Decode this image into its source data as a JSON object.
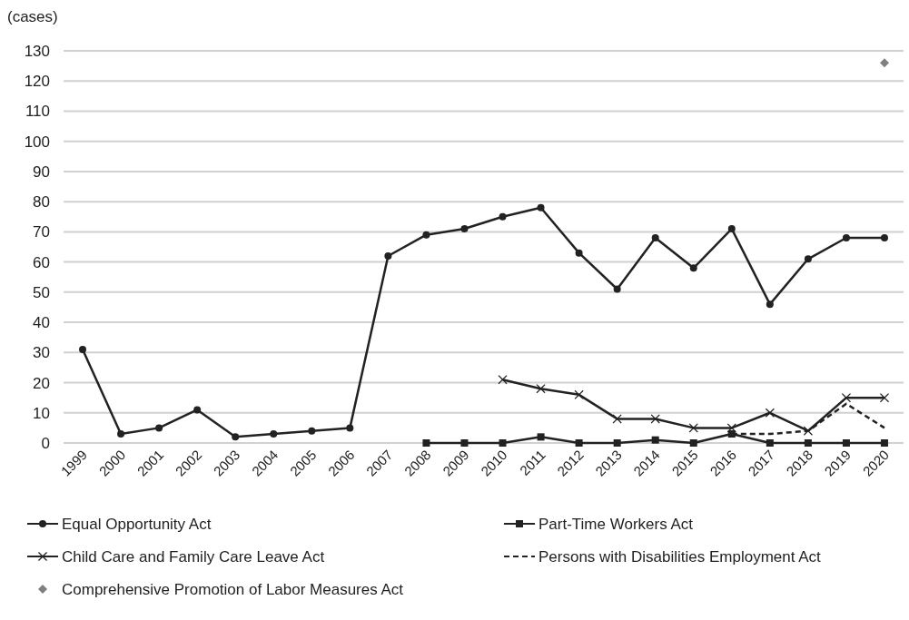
{
  "chart_data": {
    "type": "line",
    "ylabel": "(cases)",
    "categories": [
      "1999",
      "2000",
      "2001",
      "2002",
      "2003",
      "2004",
      "2005",
      "2006",
      "2007",
      "2008",
      "2009",
      "2010",
      "2011",
      "2012",
      "2013",
      "2014",
      "2015",
      "2016",
      "2017",
      "2018",
      "2019",
      "2020"
    ],
    "ylim": [
      0,
      130
    ],
    "yticks": [
      0,
      10,
      20,
      30,
      40,
      50,
      60,
      70,
      80,
      90,
      100,
      110,
      120,
      130
    ],
    "grid": "y",
    "legend": "bottom",
    "series": [
      {
        "name": "Equal Opportunity Act",
        "color": "#222222",
        "marker": "circle",
        "line_style": "solid",
        "values": [
          31,
          3,
          5,
          11,
          2,
          3,
          4,
          5,
          62,
          69,
          71,
          75,
          78,
          63,
          51,
          68,
          58,
          71,
          46,
          61,
          68,
          68
        ]
      },
      {
        "name": "Part-Time Workers Act",
        "color": "#222222",
        "marker": "square",
        "line_style": "solid",
        "values": [
          null,
          null,
          null,
          null,
          null,
          null,
          null,
          null,
          null,
          0,
          0,
          0,
          2,
          0,
          0,
          1,
          0,
          3,
          0,
          0,
          0,
          0
        ]
      },
      {
        "name": "Child Care and Family Care Leave Act",
        "color": "#222222",
        "marker": "cross",
        "line_style": "solid",
        "values": [
          null,
          null,
          null,
          null,
          null,
          null,
          null,
          null,
          null,
          null,
          null,
          21,
          18,
          16,
          8,
          8,
          5,
          5,
          10,
          4,
          15,
          15
        ]
      },
      {
        "name": "Persons with Disabilities Employment Act",
        "color": "#222222",
        "marker": "none",
        "line_style": "dashed",
        "values": [
          null,
          null,
          null,
          null,
          null,
          null,
          null,
          null,
          null,
          null,
          null,
          null,
          null,
          null,
          null,
          null,
          null,
          3,
          3,
          4,
          13,
          5
        ]
      },
      {
        "name": "Comprehensive Promotion of Labor Measures Act",
        "color": "#7f7f7f",
        "type": "scatter",
        "marker": "diamond",
        "values": [
          null,
          null,
          null,
          null,
          null,
          null,
          null,
          null,
          null,
          null,
          null,
          null,
          null,
          null,
          null,
          null,
          null,
          null,
          null,
          null,
          null,
          126
        ]
      }
    ]
  }
}
